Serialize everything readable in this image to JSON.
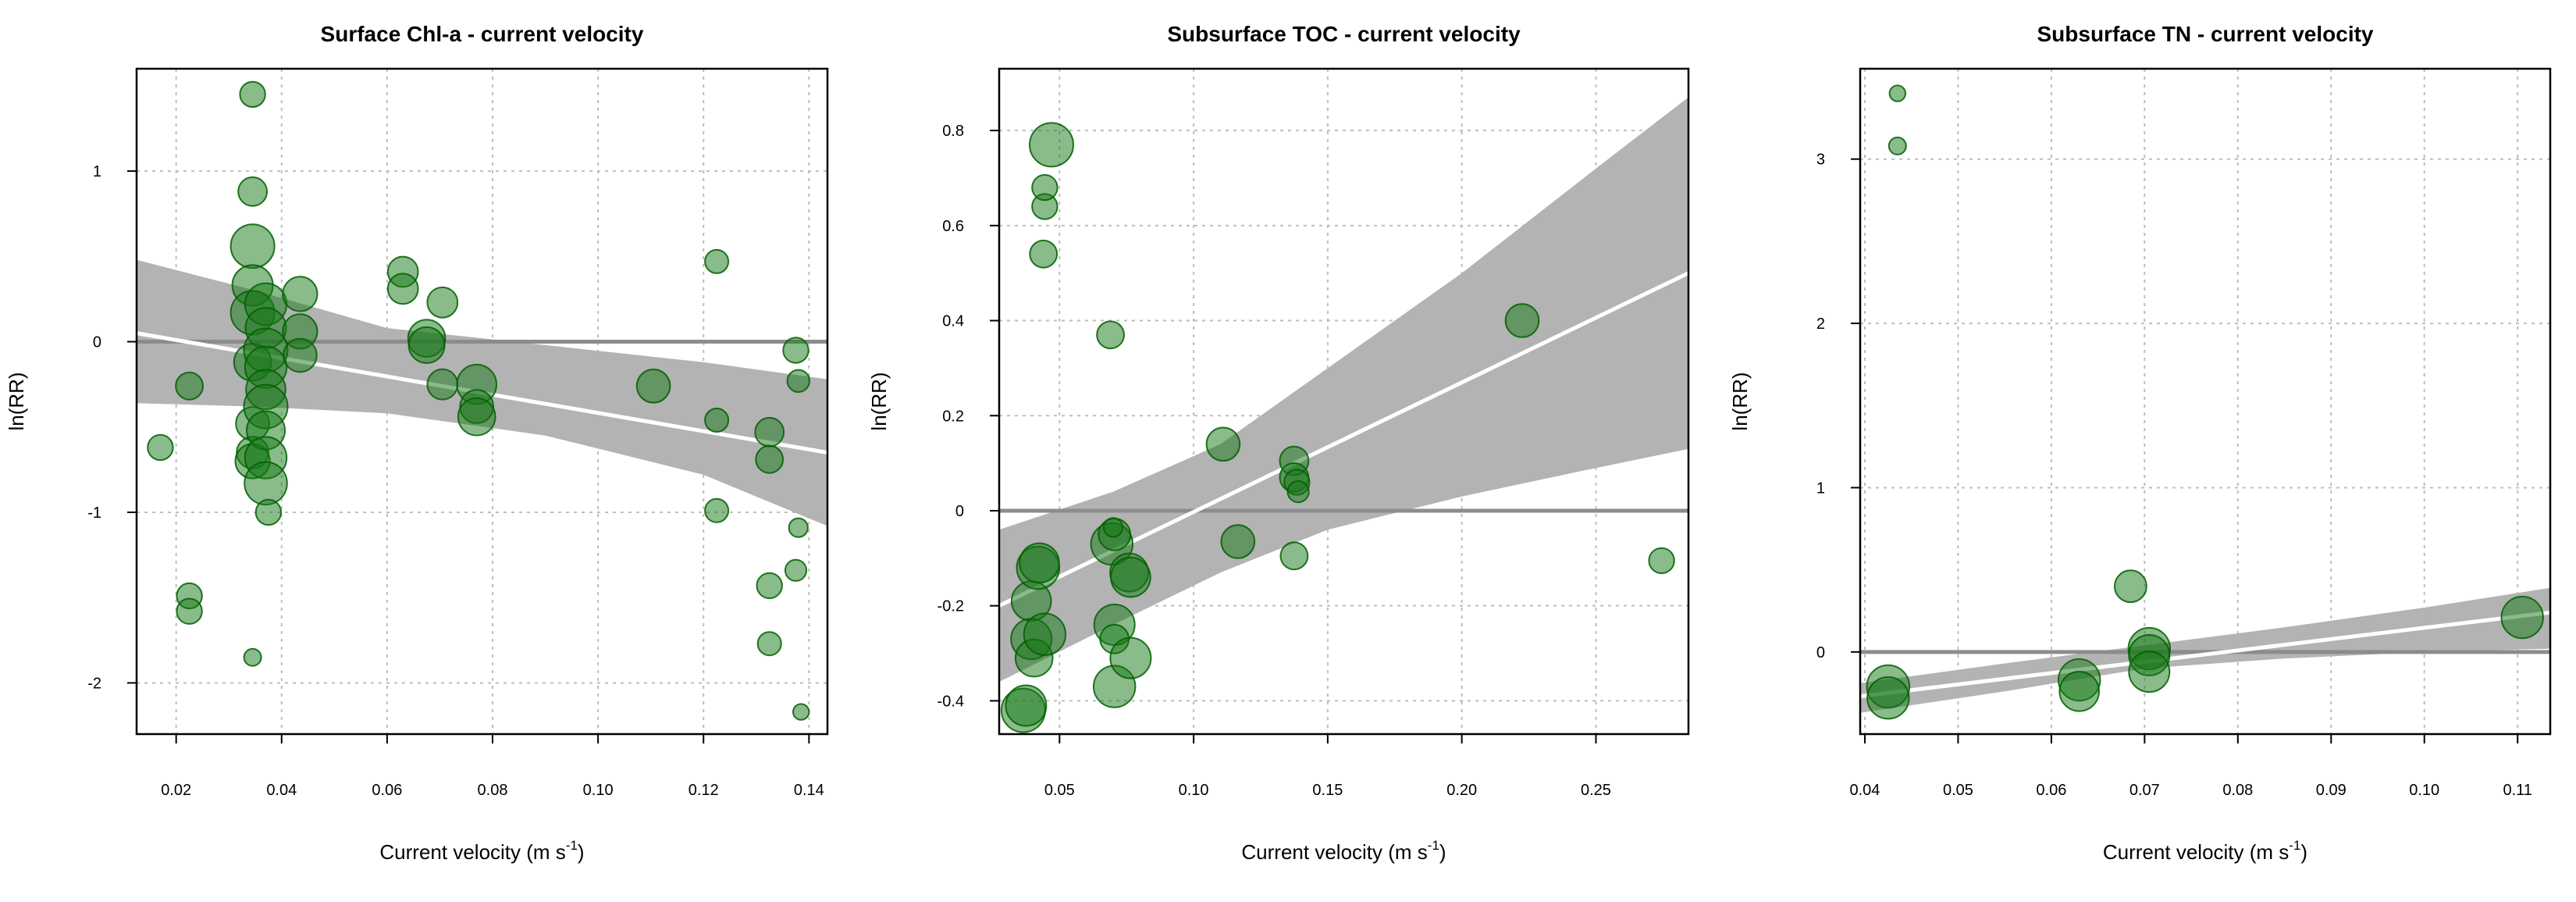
{
  "chart_data": [
    {
      "type": "scatter",
      "title": "Surface Chl-a - current velocity",
      "xlabel": "Current velocity (m s",
      "xlabel_sup": "-1",
      "xlabel_close": ")",
      "ylabel": "ln(RR)",
      "xlim": [
        0.0125,
        0.1435
      ],
      "ylim": [
        -2.3,
        1.6
      ],
      "xticks": [
        {
          "v": 0.02,
          "label": "0.02"
        },
        {
          "v": 0.04,
          "label": "0.04"
        },
        {
          "v": 0.06,
          "label": "0.06"
        },
        {
          "v": 0.08,
          "label": "0.08"
        },
        {
          "v": 0.1,
          "label": "0.10"
        },
        {
          "v": 0.12,
          "label": "0.12"
        },
        {
          "v": 0.14,
          "label": "0.14"
        }
      ],
      "yticks": [
        {
          "v": 1,
          "label": "1"
        },
        {
          "v": 0,
          "label": "0"
        },
        {
          "v": -1,
          "label": "-1"
        },
        {
          "v": -2,
          "label": "-2"
        }
      ],
      "grid": true,
      "fit": {
        "x": [
          0.0125,
          0.1435
        ],
        "y": [
          0.05,
          -0.65
        ]
      },
      "ci_band": {
        "x": [
          0.0125,
          0.035,
          0.06,
          0.09,
          0.12,
          0.1435
        ],
        "upper": [
          0.48,
          0.3,
          0.08,
          -0.02,
          -0.12,
          -0.22
        ],
        "lower": [
          -0.36,
          -0.38,
          -0.42,
          -0.55,
          -0.78,
          -1.08
        ]
      },
      "points": [
        {
          "x": 0.017,
          "y": -0.62,
          "w": 0.3
        },
        {
          "x": 0.0225,
          "y": -0.26,
          "w": 0.35
        },
        {
          "x": 0.0225,
          "y": -1.49,
          "w": 0.3
        },
        {
          "x": 0.0225,
          "y": -1.58,
          "w": 0.3
        },
        {
          "x": 0.0345,
          "y": 1.45,
          "w": 0.3
        },
        {
          "x": 0.0345,
          "y": 0.88,
          "w": 0.4
        },
        {
          "x": 0.0345,
          "y": 0.56,
          "w": 1.0
        },
        {
          "x": 0.0345,
          "y": 0.33,
          "w": 0.85
        },
        {
          "x": 0.0345,
          "y": 0.17,
          "w": 1.0
        },
        {
          "x": 0.0345,
          "y": -0.12,
          "w": 0.7
        },
        {
          "x": 0.0345,
          "y": -0.48,
          "w": 0.55
        },
        {
          "x": 0.0345,
          "y": -0.65,
          "w": 0.5
        },
        {
          "x": 0.0345,
          "y": -0.7,
          "w": 0.6
        },
        {
          "x": 0.0345,
          "y": -1.85,
          "w": 0.12
        },
        {
          "x": 0.037,
          "y": 0.22,
          "w": 0.9
        },
        {
          "x": 0.037,
          "y": 0.08,
          "w": 0.85
        },
        {
          "x": 0.037,
          "y": -0.05,
          "w": 1.0
        },
        {
          "x": 0.037,
          "y": -0.15,
          "w": 0.9
        },
        {
          "x": 0.037,
          "y": -0.28,
          "w": 0.8
        },
        {
          "x": 0.037,
          "y": -0.38,
          "w": 1.0
        },
        {
          "x": 0.037,
          "y": -0.52,
          "w": 0.75
        },
        {
          "x": 0.037,
          "y": -0.68,
          "w": 0.9
        },
        {
          "x": 0.037,
          "y": -0.83,
          "w": 0.95
        },
        {
          "x": 0.0375,
          "y": -1.0,
          "w": 0.3
        },
        {
          "x": 0.0435,
          "y": 0.28,
          "w": 0.6
        },
        {
          "x": 0.0435,
          "y": 0.06,
          "w": 0.6
        },
        {
          "x": 0.0435,
          "y": -0.08,
          "w": 0.55
        },
        {
          "x": 0.063,
          "y": 0.41,
          "w": 0.45
        },
        {
          "x": 0.063,
          "y": 0.31,
          "w": 0.45
        },
        {
          "x": 0.0675,
          "y": 0.02,
          "w": 0.7
        },
        {
          "x": 0.0675,
          "y": -0.02,
          "w": 0.65
        },
        {
          "x": 0.0705,
          "y": 0.23,
          "w": 0.45
        },
        {
          "x": 0.0705,
          "y": -0.25,
          "w": 0.45
        },
        {
          "x": 0.077,
          "y": -0.25,
          "w": 0.8
        },
        {
          "x": 0.077,
          "y": -0.38,
          "w": 0.55
        },
        {
          "x": 0.077,
          "y": -0.44,
          "w": 0.7
        },
        {
          "x": 0.1105,
          "y": -0.26,
          "w": 0.55
        },
        {
          "x": 0.1225,
          "y": 0.47,
          "w": 0.25
        },
        {
          "x": 0.1225,
          "y": -0.46,
          "w": 0.25
        },
        {
          "x": 0.1225,
          "y": -0.99,
          "w": 0.25
        },
        {
          "x": 0.1325,
          "y": -0.53,
          "w": 0.4
        },
        {
          "x": 0.1325,
          "y": -0.69,
          "w": 0.35
        },
        {
          "x": 0.1325,
          "y": -1.43,
          "w": 0.3
        },
        {
          "x": 0.1325,
          "y": -1.77,
          "w": 0.25
        },
        {
          "x": 0.1375,
          "y": -0.05,
          "w": 0.3
        },
        {
          "x": 0.138,
          "y": -0.23,
          "w": 0.22
        },
        {
          "x": 0.1375,
          "y": -1.34,
          "w": 0.2
        },
        {
          "x": 0.138,
          "y": -1.09,
          "w": 0.15
        },
        {
          "x": 0.1385,
          "y": -2.17,
          "w": 0.1
        }
      ]
    },
    {
      "type": "scatter",
      "title": "Subsurface TOC - current velocity",
      "xlabel": "Current velocity (m s",
      "xlabel_sup": "-1",
      "xlabel_close": ")",
      "ylabel": "ln(RR)",
      "xlim": [
        0.0275,
        0.2845
      ],
      "ylim": [
        -0.47,
        0.93
      ],
      "xticks": [
        {
          "v": 0.05,
          "label": "0.05"
        },
        {
          "v": 0.1,
          "label": "0.10"
        },
        {
          "v": 0.15,
          "label": "0.15"
        },
        {
          "v": 0.2,
          "label": "0.20"
        },
        {
          "v": 0.25,
          "label": "0.25"
        }
      ],
      "yticks": [
        {
          "v": 0.8,
          "label": "0.8"
        },
        {
          "v": 0.6,
          "label": "0.6"
        },
        {
          "v": 0.4,
          "label": "0.4"
        },
        {
          "v": 0.2,
          "label": "0.2"
        },
        {
          "v": 0,
          "label": "0"
        },
        {
          "v": -0.2,
          "label": "-0.2"
        },
        {
          "v": -0.4,
          "label": "-0.4"
        }
      ],
      "grid": true,
      "fit": {
        "x": [
          0.0275,
          0.2845
        ],
        "y": [
          -0.2,
          0.5
        ]
      },
      "ci_band": {
        "x": [
          0.0275,
          0.07,
          0.11,
          0.15,
          0.2,
          0.25,
          0.2845
        ],
        "upper": [
          -0.04,
          0.04,
          0.14,
          0.3,
          0.5,
          0.72,
          0.87
        ],
        "lower": [
          -0.36,
          -0.24,
          -0.13,
          -0.04,
          0.03,
          0.09,
          0.13
        ]
      },
      "points": [
        {
          "x": 0.0365,
          "y": -0.42,
          "w": 1.0
        },
        {
          "x": 0.0375,
          "y": -0.41,
          "w": 0.85
        },
        {
          "x": 0.0395,
          "y": -0.19,
          "w": 0.8
        },
        {
          "x": 0.0395,
          "y": -0.27,
          "w": 0.85
        },
        {
          "x": 0.0405,
          "y": -0.31,
          "w": 0.7
        },
        {
          "x": 0.042,
          "y": -0.12,
          "w": 0.95
        },
        {
          "x": 0.0425,
          "y": -0.11,
          "w": 0.8
        },
        {
          "x": 0.0445,
          "y": -0.26,
          "w": 0.9
        },
        {
          "x": 0.044,
          "y": 0.54,
          "w": 0.35
        },
        {
          "x": 0.0445,
          "y": 0.64,
          "w": 0.3
        },
        {
          "x": 0.0445,
          "y": 0.68,
          "w": 0.3
        },
        {
          "x": 0.047,
          "y": 0.77,
          "w": 1.0
        },
        {
          "x": 0.069,
          "y": 0.37,
          "w": 0.35
        },
        {
          "x": 0.0695,
          "y": -0.07,
          "w": 0.9
        },
        {
          "x": 0.0705,
          "y": -0.05,
          "w": 0.5
        },
        {
          "x": 0.07,
          "y": -0.035,
          "w": 0.15
        },
        {
          "x": 0.0705,
          "y": -0.24,
          "w": 0.85
        },
        {
          "x": 0.0705,
          "y": -0.27,
          "w": 0.4
        },
        {
          "x": 0.0705,
          "y": -0.37,
          "w": 0.9
        },
        {
          "x": 0.076,
          "y": -0.13,
          "w": 0.75
        },
        {
          "x": 0.0765,
          "y": -0.14,
          "w": 0.8
        },
        {
          "x": 0.0765,
          "y": -0.31,
          "w": 0.85
        },
        {
          "x": 0.111,
          "y": 0.14,
          "w": 0.55
        },
        {
          "x": 0.1165,
          "y": -0.065,
          "w": 0.55
        },
        {
          "x": 0.1375,
          "y": 0.105,
          "w": 0.4
        },
        {
          "x": 0.1375,
          "y": 0.07,
          "w": 0.4
        },
        {
          "x": 0.1385,
          "y": 0.06,
          "w": 0.3
        },
        {
          "x": 0.139,
          "y": 0.04,
          "w": 0.2
        },
        {
          "x": 0.1375,
          "y": -0.095,
          "w": 0.35
        },
        {
          "x": 0.2225,
          "y": 0.4,
          "w": 0.55
        },
        {
          "x": 0.2745,
          "y": -0.105,
          "w": 0.3
        }
      ]
    },
    {
      "type": "scatter",
      "title": "Subsurface TN - current velocity",
      "xlabel": "Current velocity (m s",
      "xlabel_sup": "-1",
      "xlabel_close": ")",
      "ylabel": "ln(RR)",
      "xlim": [
        0.0395,
        0.1135
      ],
      "ylim": [
        -0.5,
        3.55
      ],
      "xticks": [
        {
          "v": 0.04,
          "label": "0.04"
        },
        {
          "v": 0.05,
          "label": "0.05"
        },
        {
          "v": 0.06,
          "label": "0.06"
        },
        {
          "v": 0.07,
          "label": "0.07"
        },
        {
          "v": 0.08,
          "label": "0.08"
        },
        {
          "v": 0.09,
          "label": "0.09"
        },
        {
          "v": 0.1,
          "label": "0.10"
        },
        {
          "v": 0.11,
          "label": "0.11"
        }
      ],
      "yticks": [
        {
          "v": 3,
          "label": "3"
        },
        {
          "v": 2,
          "label": "2"
        },
        {
          "v": 1,
          "label": "1"
        },
        {
          "v": 0,
          "label": "0"
        }
      ],
      "grid": true,
      "fit": {
        "x": [
          0.0395,
          0.1135
        ],
        "y": [
          -0.27,
          0.24
        ]
      },
      "ci_band": {
        "x": [
          0.0395,
          0.055,
          0.07,
          0.085,
          0.1,
          0.1135
        ],
        "upper": [
          -0.19,
          -0.07,
          0.04,
          0.15,
          0.27,
          0.39
        ],
        "lower": [
          -0.37,
          -0.24,
          -0.1,
          -0.04,
          0.0,
          0.02
        ]
      },
      "points": [
        {
          "x": 0.0435,
          "y": 3.4,
          "w": 0.1
        },
        {
          "x": 0.0435,
          "y": 3.08,
          "w": 0.12
        },
        {
          "x": 0.0425,
          "y": -0.21,
          "w": 0.95
        },
        {
          "x": 0.0425,
          "y": -0.28,
          "w": 0.9
        },
        {
          "x": 0.063,
          "y": -0.17,
          "w": 0.9
        },
        {
          "x": 0.063,
          "y": -0.24,
          "w": 0.8
        },
        {
          "x": 0.0685,
          "y": 0.4,
          "w": 0.5
        },
        {
          "x": 0.0705,
          "y": 0.02,
          "w": 0.9
        },
        {
          "x": 0.0705,
          "y": -0.02,
          "w": 0.85
        },
        {
          "x": 0.0705,
          "y": -0.12,
          "w": 0.85
        },
        {
          "x": 0.1105,
          "y": 0.21,
          "w": 0.9
        }
      ]
    }
  ]
}
